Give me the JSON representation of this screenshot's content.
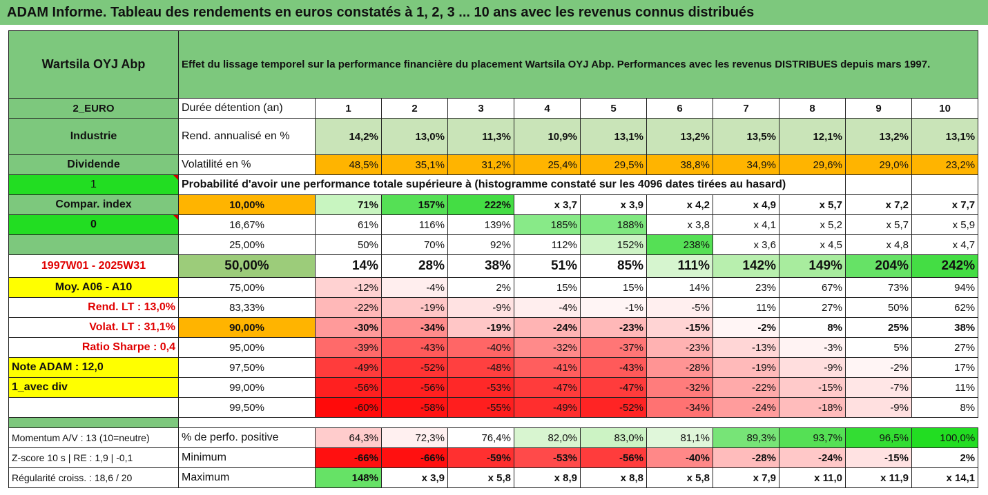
{
  "banner": "ADAM Informe. Tableau des rendements en euros constatés à 1, 2, 3 ... 10 ans avec les revenus connus distribués",
  "header": {
    "name": "Wartsila OYJ Abp",
    "description": "Effet du lissage temporel sur la performance financière du placement Wartsila OYJ Abp. Performances avec les revenus DISTRIBUES depuis mars 1997."
  },
  "sidebar": [
    "2_EURO",
    "Industrie",
    "Dividende",
    "1",
    "Compar. index",
    "0",
    "",
    "1997W01 - 2025W31",
    "Moy. A06 - A10",
    "Rend. LT :   13,0%",
    "Volat. LT :   31,1%",
    "Ratio Sharpe :    0,4",
    "Note ADAM : 12,0",
    "1_avec div",
    "",
    "",
    "Momentum A/V : 13 (10=neutre)",
    "Z-score 10 s  |  RE : 1,9  | -0,1",
    "Régularité croiss. : 18,6 / 20"
  ],
  "duration": {
    "label": "Durée détention (an)",
    "years": [
      "1",
      "2",
      "3",
      "4",
      "5",
      "6",
      "7",
      "8",
      "9",
      "10"
    ]
  },
  "rend": {
    "label": "Rend. annualisé en %",
    "values": [
      "14,2%",
      "13,0%",
      "11,3%",
      "10,9%",
      "13,1%",
      "13,2%",
      "13,5%",
      "12,1%",
      "13,2%",
      "13,1%"
    ]
  },
  "vol": {
    "label": "Volatilité en %",
    "values": [
      "48,5%",
      "35,1%",
      "31,2%",
      "25,4%",
      "29,5%",
      "38,8%",
      "34,9%",
      "29,6%",
      "29,0%",
      "23,2%"
    ]
  },
  "prob_title": "Probabilité d'avoir une performance totale supérieure à (histogramme constaté sur les 4096 dates tirées au hasard)",
  "prob_rows": [
    {
      "label": "10,00%",
      "values": [
        "71%",
        "157%",
        "222%",
        "x 3,7",
        "x 3,9",
        "x 4,2",
        "x 4,9",
        "x 5,7",
        "x 7,2",
        "x 7,7"
      ]
    },
    {
      "label": "16,67%",
      "values": [
        "61%",
        "116%",
        "139%",
        "185%",
        "188%",
        "x 3,8",
        "x 4,1",
        "x 5,2",
        "x 5,7",
        "x 5,9"
      ]
    },
    {
      "label": "25,00%",
      "values": [
        "50%",
        "70%",
        "92%",
        "112%",
        "152%",
        "238%",
        "x 3,6",
        "x 4,5",
        "x 4,8",
        "x 4,7"
      ]
    },
    {
      "label": "50,00%",
      "values": [
        "14%",
        "28%",
        "38%",
        "51%",
        "85%",
        "111%",
        "142%",
        "149%",
        "204%",
        "242%"
      ]
    },
    {
      "label": "75,00%",
      "values": [
        "-12%",
        "-4%",
        "2%",
        "15%",
        "15%",
        "14%",
        "23%",
        "67%",
        "73%",
        "94%"
      ]
    },
    {
      "label": "83,33%",
      "values": [
        "-22%",
        "-19%",
        "-9%",
        "-4%",
        "-1%",
        "-5%",
        "11%",
        "27%",
        "50%",
        "62%"
      ]
    },
    {
      "label": "90,00%",
      "values": [
        "-30%",
        "-34%",
        "-19%",
        "-24%",
        "-23%",
        "-15%",
        "-2%",
        "8%",
        "25%",
        "38%"
      ]
    },
    {
      "label": "95,00%",
      "values": [
        "-39%",
        "-43%",
        "-40%",
        "-32%",
        "-37%",
        "-23%",
        "-13%",
        "-3%",
        "5%",
        "27%"
      ]
    },
    {
      "label": "97,50%",
      "values": [
        "-49%",
        "-52%",
        "-48%",
        "-41%",
        "-43%",
        "-28%",
        "-19%",
        "-9%",
        "-2%",
        "17%"
      ]
    },
    {
      "label": "99,00%",
      "values": [
        "-56%",
        "-56%",
        "-53%",
        "-47%",
        "-47%",
        "-32%",
        "-22%",
        "-15%",
        "-7%",
        "11%"
      ]
    },
    {
      "label": "99,50%",
      "values": [
        "-60%",
        "-58%",
        "-55%",
        "-49%",
        "-52%",
        "-34%",
        "-24%",
        "-18%",
        "-9%",
        "8%"
      ]
    }
  ],
  "pos": {
    "label": "% de perfo. positive",
    "values": [
      "64,3%",
      "72,3%",
      "76,4%",
      "82,0%",
      "83,0%",
      "81,1%",
      "89,3%",
      "93,7%",
      "96,5%",
      "100,0%"
    ]
  },
  "min": {
    "label": "Minimum",
    "values": [
      "-66%",
      "-66%",
      "-59%",
      "-53%",
      "-56%",
      "-40%",
      "-28%",
      "-24%",
      "-15%",
      "2%"
    ]
  },
  "max": {
    "label": "Maximum",
    "values": [
      "148%",
      "x 3,9",
      "x 5,8",
      "x 8,9",
      "x 8,8",
      "x 5,8",
      "x 7,9",
      "x 11,0",
      "x 11,9",
      "x 14,1"
    ]
  },
  "colors": {
    "header_green": "#7dc87d",
    "lime": "#22dd22",
    "yellow": "#ffff00",
    "orange": "#ffb400",
    "prob": [
      [
        "#c8f5c0",
        "#55e055",
        "#44dd44",
        "#ffffff",
        "#ffffff",
        "#ffffff",
        "#ffffff",
        "#ffffff",
        "#ffffff",
        "#ffffff"
      ],
      [
        "#ffffff",
        "#ffffff",
        "#ffffff",
        "#88ea88",
        "#80e880",
        "#ffffff",
        "#ffffff",
        "#ffffff",
        "#ffffff",
        "#ffffff"
      ],
      [
        "#ffffff",
        "#ffffff",
        "#ffffff",
        "#ffffff",
        "#cdf3c5",
        "#55e055",
        "#ffffff",
        "#ffffff",
        "#ffffff",
        "#ffffff"
      ],
      [
        "#ffffff",
        "#ffffff",
        "#ffffff",
        "#ffffff",
        "#ffffff",
        "#d6f5cf",
        "#b8efae",
        "#a8ec9e",
        "#66e266",
        "#44dd44"
      ],
      [
        "#ffd2d2",
        "#ffeeee",
        "#ffffff",
        "#ffffff",
        "#ffffff",
        "#ffffff",
        "#ffffff",
        "#ffffff",
        "#ffffff",
        "#ffffff"
      ],
      [
        "#ffb8b8",
        "#ffc6c6",
        "#ffe2e2",
        "#ffeeee",
        "#fff5f5",
        "#ffefef",
        "#ffffff",
        "#ffffff",
        "#ffffff",
        "#ffffff"
      ],
      [
        "#ff9a9a",
        "#ff8c8c",
        "#ffc6c6",
        "#ffb4b4",
        "#ffb8b8",
        "#ffd4d4",
        "#fff5f5",
        "#ffffff",
        "#ffffff",
        "#ffffff"
      ],
      [
        "#ff6a6a",
        "#ff5a5a",
        "#ff6666",
        "#ff8a8a",
        "#ff7676",
        "#ffb2b2",
        "#ffd6d6",
        "#fff3f3",
        "#ffffff",
        "#ffffff"
      ],
      [
        "#ff3c3c",
        "#ff3434",
        "#ff4040",
        "#ff5e5e",
        "#ff5a5a",
        "#ff9494",
        "#ffbaba",
        "#ffdede",
        "#fff5f5",
        "#ffffff"
      ],
      [
        "#ff2020",
        "#ff2020",
        "#ff2828",
        "#ff3c3c",
        "#ff3c3c",
        "#ff7c7c",
        "#ffaaaa",
        "#ffcaca",
        "#ffe6e6",
        "#ffffff"
      ],
      [
        "#ff0a0a",
        "#ff1414",
        "#ff1e1e",
        "#ff2e2e",
        "#ff2424",
        "#ff7272",
        "#ff9c9c",
        "#ffbcbc",
        "#ffe0e0",
        "#ffffff"
      ]
    ],
    "pos": [
      "#ffcccc",
      "#fff0f0",
      "#ffffff",
      "#d8f5d0",
      "#ccf3c4",
      "#e0f7da",
      "#77e477",
      "#55e055",
      "#33dd33",
      "#22dd22"
    ],
    "min": [
      "#ff1010",
      "#ff1010",
      "#ff3030",
      "#ff4a4a",
      "#ff3c3c",
      "#ff8888",
      "#ffbcbc",
      "#ffc8c8",
      "#ffe2e2",
      "#ffffff"
    ],
    "max": [
      "#66e266",
      "#ffffff",
      "#ffffff",
      "#ffffff",
      "#ffffff",
      "#ffffff",
      "#ffffff",
      "#ffffff",
      "#ffffff",
      "#ffffff"
    ]
  }
}
